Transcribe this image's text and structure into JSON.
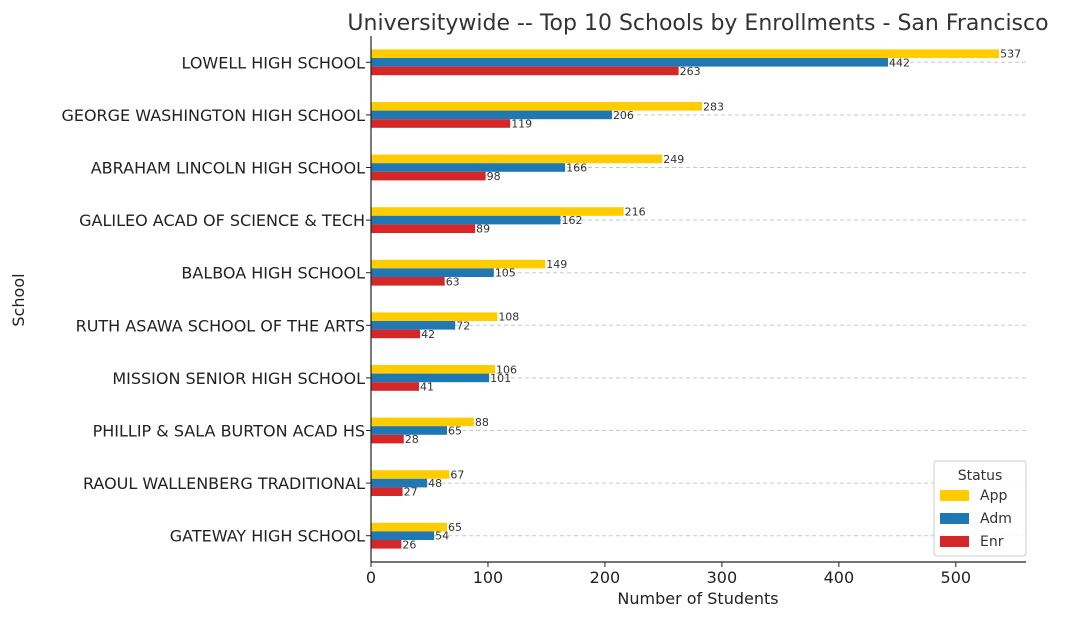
{
  "chart_data": {
    "type": "bar",
    "orientation": "horizontal",
    "title": "Universitywide -- Top 10 Schools by Enrollments - San Francisco",
    "xlabel": "Number of Students",
    "ylabel": "School",
    "xlim": [
      0,
      560
    ],
    "xticks": [
      0,
      100,
      200,
      300,
      400,
      500
    ],
    "grid": "x-dashed",
    "legend": {
      "title": "Status",
      "placement": "bottom-right"
    },
    "categories": [
      "LOWELL HIGH SCHOOL",
      "GEORGE WASHINGTON HIGH SCHOOL",
      "ABRAHAM LINCOLN HIGH SCHOOL",
      "GALILEO ACAD OF SCIENCE & TECH",
      "BALBOA HIGH SCHOOL",
      "RUTH ASAWA SCHOOL OF THE ARTS",
      "MISSION SENIOR HIGH SCHOOL",
      "PHILLIP & SALA BURTON ACAD HS",
      "RAOUL WALLENBERG TRADITIONAL",
      "GATEWAY HIGH SCHOOL"
    ],
    "series": [
      {
        "name": "App",
        "color": "#FFCC00",
        "values": [
          537,
          283,
          249,
          216,
          149,
          108,
          106,
          88,
          67,
          65
        ]
      },
      {
        "name": "Adm",
        "color": "#1F77B4",
        "values": [
          442,
          206,
          166,
          162,
          105,
          72,
          101,
          65,
          48,
          54
        ]
      },
      {
        "name": "Enr",
        "color": "#D62728",
        "values": [
          263,
          119,
          98,
          89,
          63,
          42,
          41,
          28,
          27,
          26
        ]
      }
    ]
  }
}
